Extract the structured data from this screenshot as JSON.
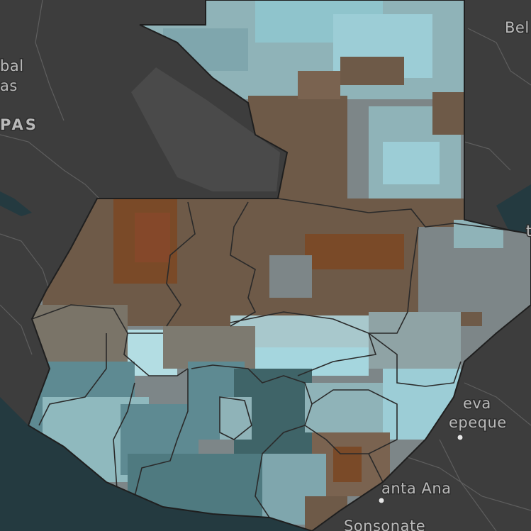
{
  "map": {
    "colors": {
      "land": "#3d3d3d",
      "land_highlight": "#4a4a4a",
      "water": "#243a40",
      "roads": "#6a6a6a",
      "admin_border": "#1f1f1f",
      "brown_dark": "#7a4a28",
      "brown": "#6e5a48",
      "grey_mid": "#7d8688",
      "teal_light": "#9ccdd6",
      "teal": "#5e8a92",
      "teal_dark": "#3f6468"
    },
    "labels": [
      {
        "id": "label-belize",
        "text": "Bel"
      },
      {
        "id": "label-balancan-1",
        "text": "bal"
      },
      {
        "id": "label-balancan-2",
        "text": "as"
      },
      {
        "id": "label-chiapas",
        "text": "PAS"
      },
      {
        "id": "label-nueva-tepeque-1",
        "text": "eva"
      },
      {
        "id": "label-nueva-tepeque-2",
        "text": "epeque"
      },
      {
        "id": "label-santa-ana",
        "text": "anta Ana"
      },
      {
        "id": "label-sonsonate",
        "text": "Sonsonate"
      },
      {
        "id": "label-belize-city",
        "text": "t"
      }
    ]
  }
}
